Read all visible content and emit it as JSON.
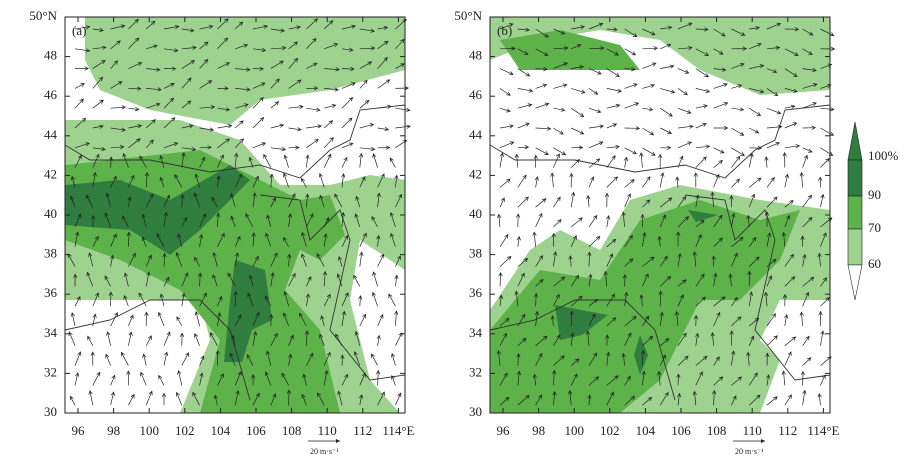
{
  "panels": [
    {
      "label": "(a)",
      "x_ticks": [
        "96",
        "98",
        "100",
        "102",
        "104",
        "106",
        "108",
        "110",
        "112",
        "114°E"
      ],
      "y_ticks": [
        "30",
        "32",
        "34",
        "36",
        "38",
        "40",
        "42",
        "44",
        "46",
        "48",
        "50°N"
      ],
      "reference_vector": "20 m·s⁻¹"
    },
    {
      "label": "(b)",
      "x_ticks": [
        "96",
        "98",
        "100",
        "102",
        "104",
        "106",
        "108",
        "110",
        "112",
        "114°E"
      ],
      "y_ticks": [
        "30",
        "32",
        "34",
        "36",
        "38",
        "40",
        "42",
        "44",
        "46",
        "48",
        "50°N"
      ],
      "reference_vector": "20 m·s⁻¹"
    }
  ],
  "colorbar": {
    "labels": [
      "100%",
      "90",
      "70",
      "60"
    ]
  }
}
